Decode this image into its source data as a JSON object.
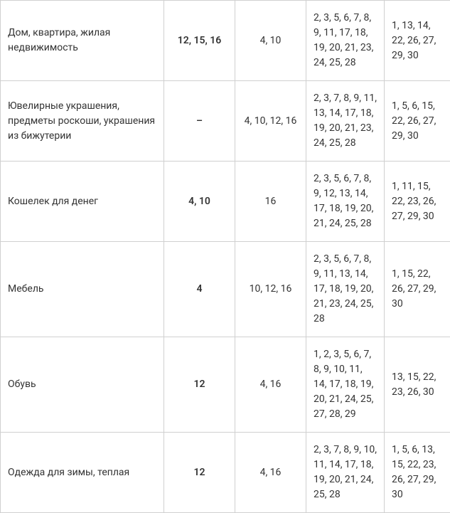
{
  "table": {
    "background_color": "#ffffff",
    "border_color": "#d0d0d0",
    "text_color": "#333333",
    "font_size": 14,
    "rows": [
      {
        "name": "Дом, квартира, жилая недвижимость",
        "col2": "12, 15, 16",
        "col3": "4, 10",
        "col4": "2, 3, 5, 6, 7, 8, 9, 11, 17, 18, 19, 20, 21, 23, 24, 25, 28",
        "col5": "1, 13, 14, 22, 26, 27, 29, 30"
      },
      {
        "name": "Ювелирные украшения, предметы роскоши, украшения из бижутерии",
        "col2": "–",
        "col3": "4, 10, 12, 16",
        "col4": "2, 3, 7, 8, 9, 11, 13, 14, 17, 18, 19, 20, 21, 23, 24, 25, 28",
        "col5": "1, 5, 6, 15, 22, 26, 27, 29, 30"
      },
      {
        "name": "Кошелек для денег",
        "col2": "4, 10",
        "col3": "16",
        "col4": "2, 3, 5, 6, 7, 8, 9, 12, 13, 14, 17, 18, 19, 20, 21, 24, 25, 28",
        "col5": "1, 11, 15, 22, 23, 26, 27, 29, 30"
      },
      {
        "name": "Мебель",
        "col2": "4",
        "col3": "10, 12, 16",
        "col4": "2, 3, 5, 6, 7, 8, 9, 11, 13, 14, 17, 18, 19, 20, 21, 23, 24, 25, 28",
        "col5": "1, 15, 22, 26, 27, 29, 30"
      },
      {
        "name": "Обувь",
        "col2": "12",
        "col3": "4, 16",
        "col4": "1, 2, 3, 5, 6, 7, 8, 9, 10, 11, 14, 17, 18, 19, 20, 21, 24, 25, 27, 28, 29",
        "col5": "13, 15, 22, 23, 26, 30"
      },
      {
        "name": "Одежда для зимы, теплая",
        "col2": "12",
        "col3": "4, 16",
        "col4": "2, 3, 7, 8, 9, 10, 11, 14, 17, 18, 19, 20, 21, 24, 25, 28",
        "col5": "1, 5, 6, 13, 15, 22, 23, 26, 27, 29, 30"
      }
    ]
  }
}
